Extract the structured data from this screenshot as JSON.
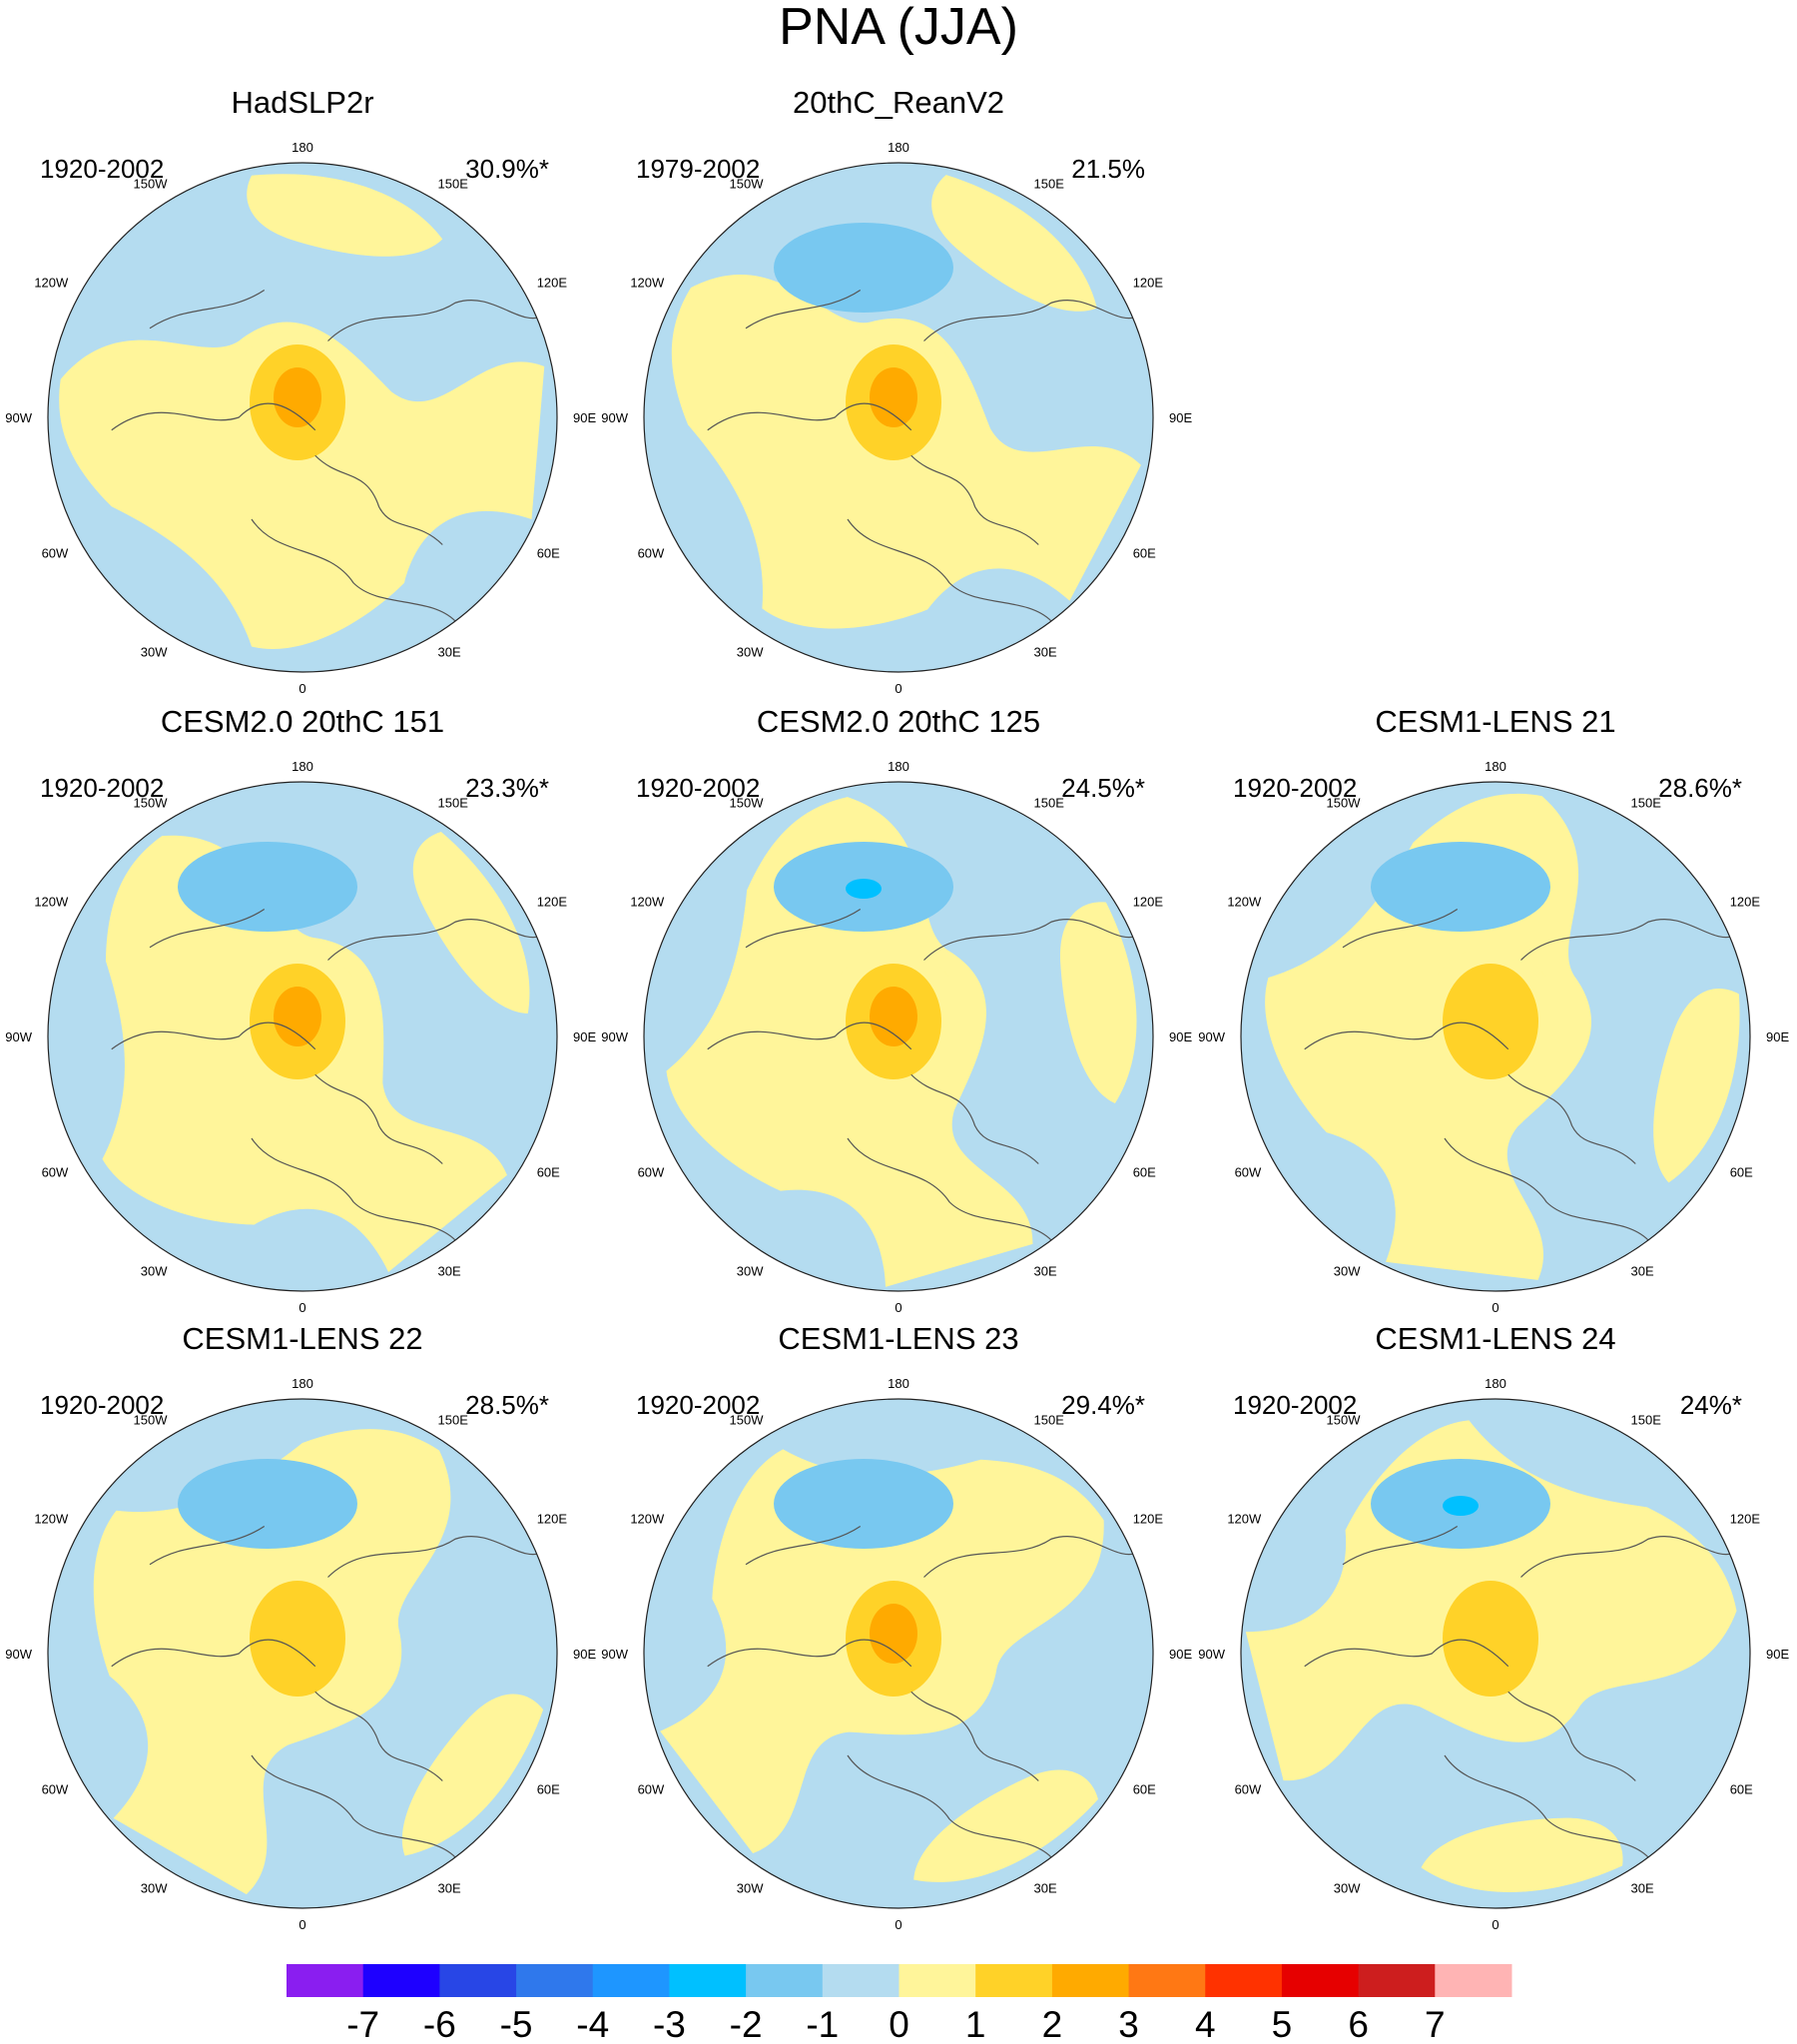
{
  "chart_data": {
    "type": "contour-map",
    "title": "PNA (JJA)",
    "projection": "north polar stereographic",
    "longitude_labels": [
      "180",
      "150E",
      "120E",
      "90E",
      "60E",
      "30E",
      "0",
      "30W",
      "60W",
      "90W",
      "120W",
      "150W"
    ],
    "panels": [
      {
        "name": "HadSLP2r",
        "period": "1920-2002",
        "variance": "30.9%*",
        "max_level": 3,
        "min_level": -1
      },
      {
        "name": "20thC_ReanV2",
        "period": "1979-2002",
        "variance": "21.5%",
        "max_level": 3,
        "min_level": -2
      },
      {
        "name": "CESM2.0 20thC 151",
        "period": "1920-2002",
        "variance": "23.3%*",
        "max_level": 3,
        "min_level": -2
      },
      {
        "name": "CESM2.0 20thC 125",
        "period": "1920-2002",
        "variance": "24.5%*",
        "max_level": 3,
        "min_level": -3
      },
      {
        "name": "CESM1-LENS 21",
        "period": "1920-2002",
        "variance": "28.6%*",
        "max_level": 2,
        "min_level": -2
      },
      {
        "name": "CESM1-LENS 22",
        "period": "1920-2002",
        "variance": "28.5%*",
        "max_level": 2,
        "min_level": -2
      },
      {
        "name": "CESM1-LENS 23",
        "period": "1920-2002",
        "variance": "29.4%*",
        "max_level": 3,
        "min_level": -2
      },
      {
        "name": "CESM1-LENS 24",
        "period": "1920-2002",
        "variance": "24%*",
        "max_level": 2,
        "min_level": -3
      }
    ],
    "colorbar": {
      "labels": [
        "-7",
        "-6",
        "-5",
        "-4",
        "-3",
        "-2",
        "-1",
        "0",
        "1",
        "2",
        "3",
        "4",
        "5",
        "6",
        "7"
      ],
      "colors": [
        "#8a1ef0",
        "#1e00ff",
        "#2846e6",
        "#2f78ec",
        "#1e96ff",
        "#00c0ff",
        "#78c8f0",
        "#b4dcf0",
        "#fff59a",
        "#ffd228",
        "#ffaa00",
        "#ff7814",
        "#ff3200",
        "#e60000",
        "#cd1e1e",
        "#ffb4b4"
      ]
    }
  }
}
